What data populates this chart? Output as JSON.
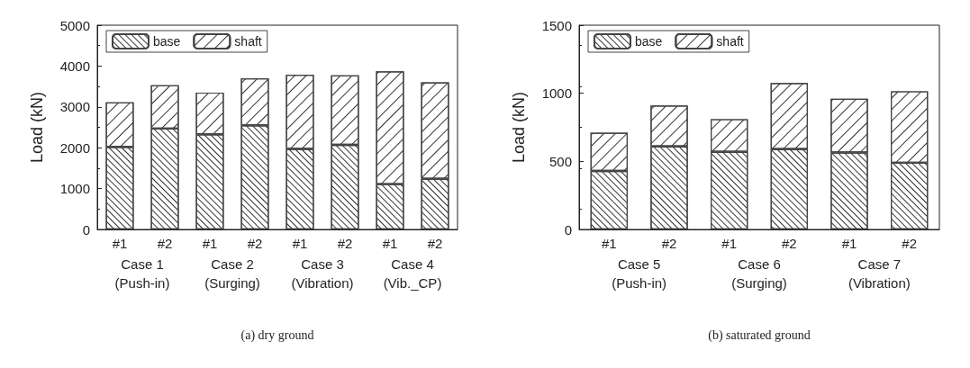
{
  "chart_data": [
    {
      "type": "bar",
      "stacked": true,
      "ylabel": "Load (kN)",
      "xlabel": "(a) dry ground",
      "categories": [
        "#1",
        "#2",
        "#1",
        "#2",
        "#1",
        "#2",
        "#1",
        "#2"
      ],
      "annotations": [
        "Case 1\n(Push-in)",
        "Case 2\n(Surging)",
        "Case 3\n(Vibration)",
        "Case 4\n(Vib._CP)"
      ],
      "series": [
        {
          "name": "base",
          "color": "#ffffff",
          "values": [
            2020,
            2470,
            2330,
            2550,
            1970,
            2070,
            1110,
            1240
          ]
        },
        {
          "name": "shaft",
          "color": "#ffffff",
          "values": [
            1090,
            1060,
            1020,
            1150,
            1820,
            1700,
            2760,
            2360
          ]
        }
      ],
      "ylim": [
        0,
        5000
      ],
      "yticks": [
        0,
        1000,
        2000,
        3000,
        4000,
        5000
      ],
      "grid": false,
      "legend": "top left"
    },
    {
      "type": "bar",
      "stacked": true,
      "ylabel": "Load (kN)",
      "xlabel": "(b) saturated ground",
      "categories": [
        "#1",
        "#2",
        "#1",
        "#2",
        "#1",
        "#2"
      ],
      "annotations": [
        "Case 5\n(Push-in)",
        "Case 6\n(Surging)",
        "Case 7\n(Vibration)"
      ],
      "series": [
        {
          "name": "base",
          "color": "#ffffff",
          "values": [
            430,
            610,
            570,
            590,
            565,
            490
          ]
        },
        {
          "name": "shaft",
          "color": "#ffffff",
          "values": [
            280,
            300,
            240,
            485,
            395,
            525
          ]
        }
      ],
      "ylim": [
        0,
        1500
      ],
      "yticks": [
        0,
        500,
        1000,
        1500
      ],
      "grid": false,
      "legend": "top left"
    }
  ]
}
